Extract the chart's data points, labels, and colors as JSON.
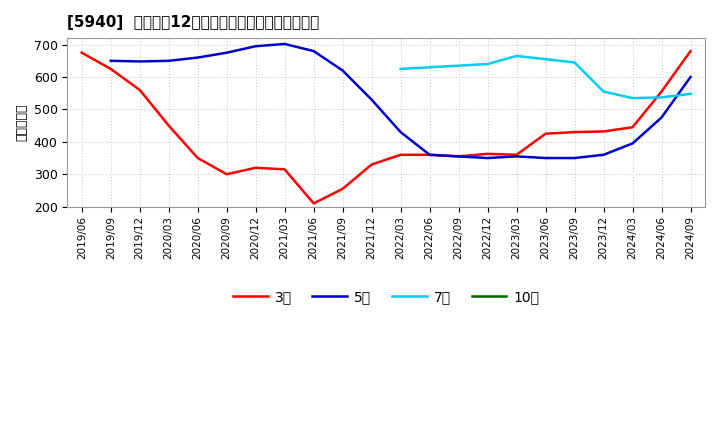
{
  "title": "[5940]  経常利益12か月移動合計の標準偏差の推移",
  "ylabel": "（百万円）",
  "ylim": [
    200,
    720
  ],
  "yticks": [
    200,
    300,
    400,
    500,
    600,
    700
  ],
  "background_color": "#ffffff",
  "grid_color": "#cccccc",
  "series_3year": {
    "color": "#ff0000",
    "label": "3年",
    "dates": [
      "2019/06",
      "2019/09",
      "2019/12",
      "2020/03",
      "2020/06",
      "2020/09",
      "2020/12",
      "2021/03",
      "2021/06",
      "2021/09",
      "2021/12",
      "2022/03",
      "2022/06",
      "2022/09",
      "2022/12",
      "2023/03",
      "2023/06",
      "2023/09",
      "2023/12",
      "2024/03",
      "2024/06",
      "2024/09"
    ],
    "values": [
      675,
      625,
      560,
      450,
      350,
      300,
      320,
      315,
      210,
      255,
      330,
      360,
      360,
      355,
      363,
      360,
      425,
      430,
      432,
      445,
      555,
      680
    ]
  },
  "series_5year": {
    "color": "#0000cc",
    "label": "5年",
    "dates": [
      "2019/09",
      "2019/12",
      "2020/03",
      "2020/06",
      "2020/09",
      "2020/12",
      "2021/03",
      "2021/06",
      "2021/09",
      "2021/12",
      "2022/03",
      "2022/06",
      "2022/09",
      "2022/12",
      "2023/03",
      "2023/06",
      "2023/09",
      "2023/12",
      "2024/03",
      "2024/06",
      "2024/09"
    ],
    "values": [
      650,
      648,
      650,
      660,
      675,
      695,
      702,
      680,
      620,
      530,
      430,
      360,
      355,
      350,
      355,
      350,
      350,
      360,
      395,
      475,
      600
    ]
  },
  "series_7year": {
    "color": "#00ccee",
    "label": "7年",
    "dates": [
      "2022/03",
      "2022/06",
      "2022/09",
      "2022/12",
      "2023/03",
      "2023/06",
      "2023/09",
      "2023/12",
      "2024/03",
      "2024/06",
      "2024/09"
    ],
    "values": [
      625,
      630,
      635,
      640,
      665,
      655,
      645,
      555,
      535,
      537,
      548
    ]
  },
  "series_10year": {
    "color": "#006600",
    "label": "10年",
    "dates": [],
    "values": []
  },
  "xtick_labels": [
    "2019/06",
    "2019/09",
    "2019/12",
    "2020/03",
    "2020/06",
    "2020/09",
    "2020/12",
    "2021/03",
    "2021/06",
    "2021/09",
    "2021/12",
    "2022/03",
    "2022/06",
    "2022/09",
    "2022/12",
    "2023/03",
    "2023/06",
    "2023/09",
    "2023/12",
    "2024/03",
    "2024/06",
    "2024/09"
  ]
}
